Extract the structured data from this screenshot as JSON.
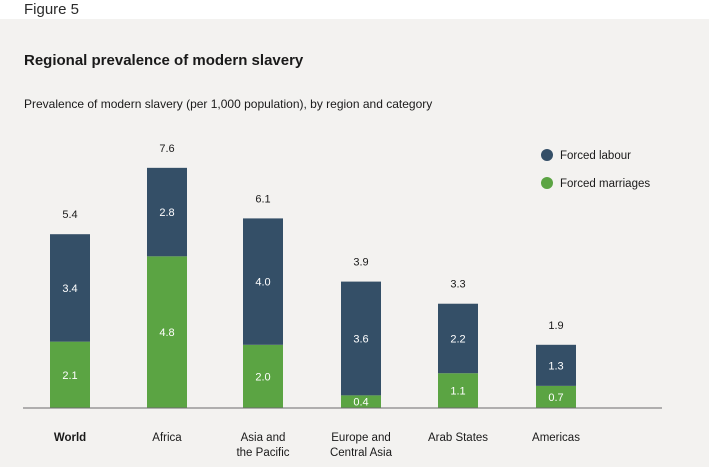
{
  "figure_label": "Figure 5",
  "title": "Regional prevalence of modern slavery",
  "subtitle": "Prevalence of modern slavery (per 1,000 population), by region and category",
  "colors": {
    "forced_labour": "#344f67",
    "forced_marriages": "#5ba443",
    "axis": "#6b6b6b",
    "background": "#f3f2f0"
  },
  "chart_data": {
    "type": "bar",
    "stacked": true,
    "categories": [
      [
        "World"
      ],
      [
        "Africa"
      ],
      [
        "Asia and",
        "the Pacific"
      ],
      [
        "Europe and",
        "Central Asia"
      ],
      [
        "Arab States"
      ],
      [
        "Americas"
      ]
    ],
    "category_bold": [
      true,
      false,
      false,
      false,
      false,
      false
    ],
    "series": [
      {
        "name": "Forced marriages",
        "values": [
          2.1,
          4.8,
          2.0,
          0.4,
          1.1,
          0.7
        ],
        "labels": [
          "2.1",
          "4.8",
          "2.0",
          "0.4",
          "1.1",
          "0.7"
        ]
      },
      {
        "name": "Forced labour",
        "values": [
          3.4,
          2.8,
          4.0,
          3.6,
          2.2,
          1.3
        ],
        "labels": [
          "3.4",
          "2.8",
          "4.0",
          "3.6",
          "2.2",
          "1.3"
        ]
      }
    ],
    "totals": [
      "5.4",
      "7.6",
      "6.1",
      "3.9",
      "3.3",
      "1.9"
    ],
    "total_values": [
      5.4,
      7.6,
      6.1,
      3.9,
      3.3,
      1.9
    ],
    "ylim": [
      0,
      8
    ],
    "legend": [
      "Forced labour",
      "Forced marriages"
    ],
    "legend_position": "top-right",
    "grid": false
  }
}
